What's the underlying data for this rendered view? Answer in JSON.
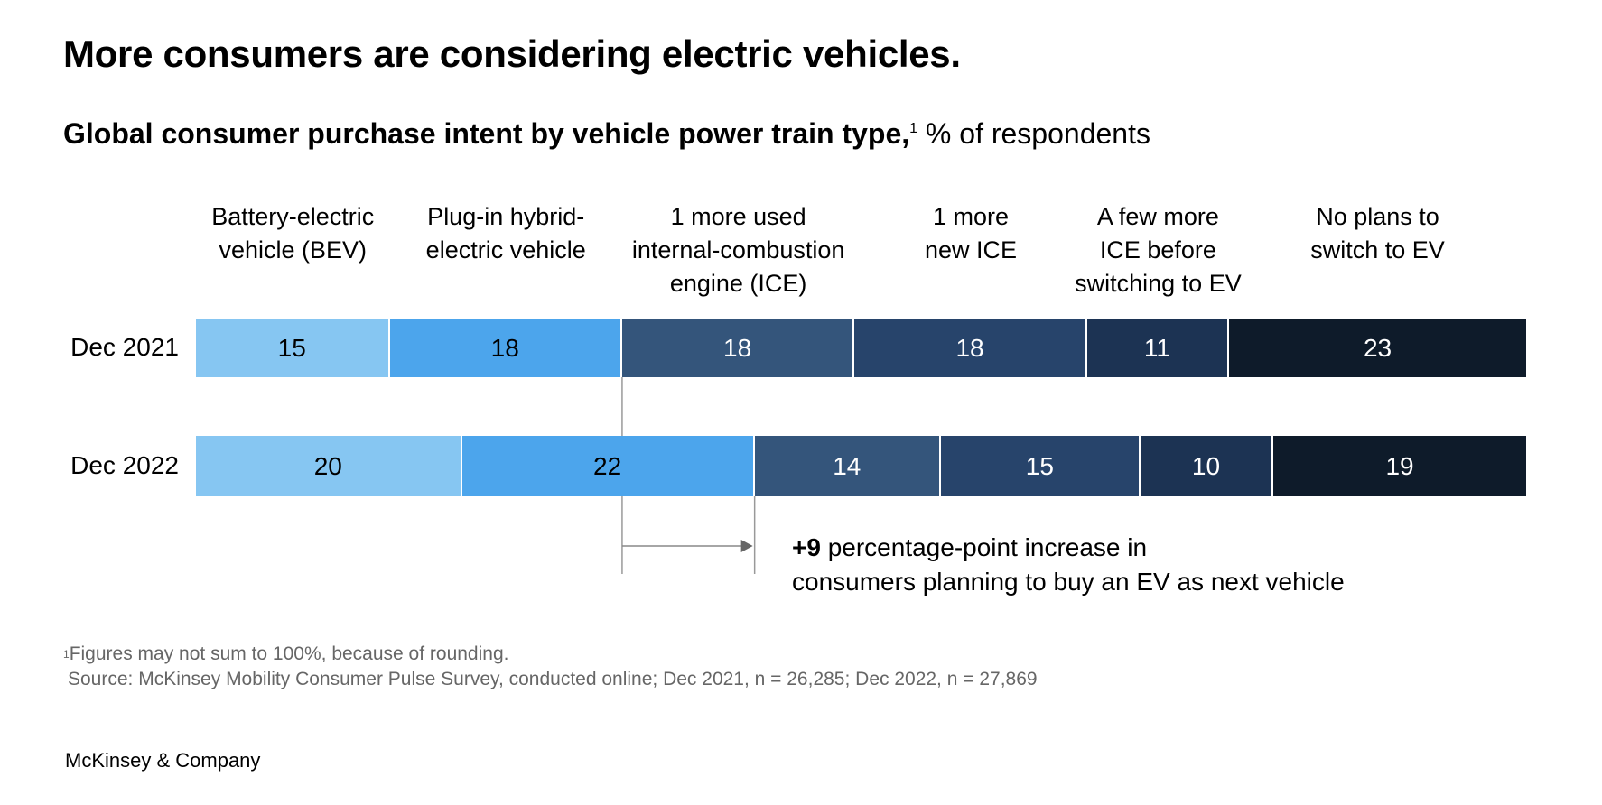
{
  "title": "More consumers are considering electric vehicles.",
  "subtitle": {
    "bold": "Global consumer purchase intent by vehicle power train type,",
    "footnote_mark": "1",
    "regular": "% of respondents"
  },
  "chart_data": {
    "type": "bar",
    "orientation": "horizontal-stacked-100",
    "title": "Global consumer purchase intent by vehicle power train type, % of respondents",
    "categories": [
      "Battery-electric vehicle (BEV)",
      "Plug-in hybrid-electric vehicle",
      "1 more used internal-combustion engine (ICE)",
      "1 more new ICE",
      "A few more ICE before switching to EV",
      "No plans to switch to EV"
    ],
    "category_label_lines": [
      [
        "Battery-electric",
        "vehicle (BEV)"
      ],
      [
        "Plug-in hybrid-",
        "electric vehicle"
      ],
      [
        "1 more used",
        "internal-combustion",
        "engine (ICE)"
      ],
      [
        "1 more",
        "new ICE"
      ],
      [
        "A few more",
        "ICE before",
        "switching to EV"
      ],
      [
        "No plans to",
        "switch to EV"
      ]
    ],
    "colors": [
      "#86c6f2",
      "#4ca5ec",
      "#34557b",
      "#27446b",
      "#1c3353",
      "#0e1b2a"
    ],
    "label_colors": [
      "#000000",
      "#000000",
      "#ffffff",
      "#ffffff",
      "#ffffff",
      "#ffffff"
    ],
    "series": [
      {
        "name": "Dec 2021",
        "values": [
          15,
          18,
          18,
          18,
          11,
          23
        ]
      },
      {
        "name": "Dec 2022",
        "values": [
          20,
          22,
          14,
          15,
          10,
          19
        ]
      }
    ],
    "xlim": [
      0,
      103
    ],
    "annotation": {
      "bold": "+9",
      "line1": " percentage-point increase in",
      "line2": "consumers planning to buy an EV as next vehicle"
    }
  },
  "footnotes": {
    "mark": "1",
    "note": "Figures may not sum to 100%, because of rounding.",
    "source": "Source: McKinsey Mobility Consumer Pulse Survey, conducted online; Dec 2021, n = 26,285; Dec 2022, n = 27,869"
  },
  "brand": "McKinsey & Company"
}
